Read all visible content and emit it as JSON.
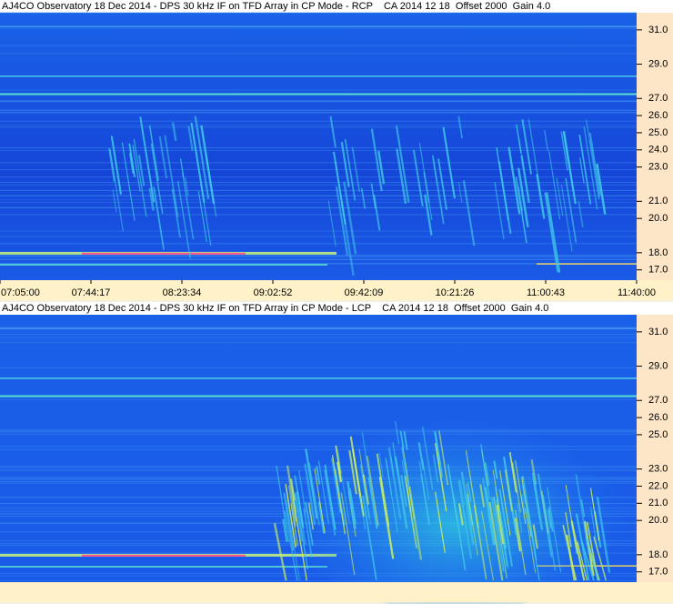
{
  "chart_data": [
    {
      "type": "spectrogram",
      "title": "AJ4CO Observatory 18 Dec 2014 - DPS 30 kHz IF on TFD Array in CP Mode - RCP    CA 2014 12 18  Offset 2000  Gain 4.0",
      "categories": [
        "07:05:00",
        "07:44:17",
        "08:23:34",
        "09:02:52",
        "09:42:09",
        "10:21:26",
        "11:00:43",
        "11:40:00"
      ],
      "ylim": [
        16.4,
        32.0
      ],
      "yticks": [
        {
          "value": 17,
          "label": "17.0"
        },
        {
          "value": 18,
          "label": "18.0"
        },
        {
          "value": 20,
          "label": "20.0"
        },
        {
          "value": 21,
          "label": "21.0"
        },
        {
          "value": 23,
          "label": "23.0"
        },
        {
          "value": 24,
          "label": "24.0"
        },
        {
          "value": 25,
          "label": "25.0"
        },
        {
          "value": 26,
          "label": "26.0"
        },
        {
          "value": 27,
          "label": "27.0"
        },
        {
          "value": 29,
          "label": "29.0"
        },
        {
          "value": 31,
          "label": "31.0"
        }
      ]
    },
    {
      "type": "spectrogram",
      "title": "AJ4CO Observatory 18 Dec 2014 - DPS 30 kHz IF on TFD Array in CP Mode - LCP    CA 2014 12 18  Offset 2000  Gain 4.0",
      "ylim": [
        16.4,
        32.0
      ],
      "yticks": [
        {
          "value": 17,
          "label": "17.0"
        },
        {
          "value": 18,
          "label": "18.0"
        },
        {
          "value": 20,
          "label": "20.0"
        },
        {
          "value": 21,
          "label": "21.0"
        },
        {
          "value": 22,
          "label": "22.0"
        },
        {
          "value": 23,
          "label": "23.0"
        },
        {
          "value": 25,
          "label": "25.0"
        },
        {
          "value": 26,
          "label": "26.0"
        },
        {
          "value": 27,
          "label": "27.0"
        },
        {
          "value": 29,
          "label": "29.0"
        },
        {
          "value": 31,
          "label": "31.0"
        }
      ]
    }
  ]
}
